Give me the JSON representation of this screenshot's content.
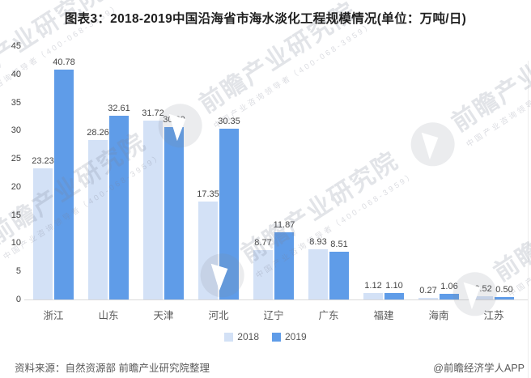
{
  "title": "图表3：2018-2019中国沿海省市海水淡化工程规模情况(单位：万吨/日)",
  "chart_data": {
    "type": "bar",
    "title": "图表3：2018-2019中国沿海省市海水淡化工程规模情况(单位：万吨/日)",
    "unit": "万吨/日",
    "categories": [
      "浙江",
      "山东",
      "天津",
      "河北",
      "辽宁",
      "广东",
      "福建",
      "海南",
      "江苏"
    ],
    "series": [
      {
        "name": "2018",
        "color": "#D3E1F6",
        "values": [
          23.23,
          28.26,
          31.72,
          17.35,
          8.77,
          8.93,
          1.12,
          0.27,
          0.52
        ]
      },
      {
        "name": "2019",
        "color": "#5F9CE8",
        "values": [
          40.78,
          32.61,
          30.6,
          30.35,
          11.87,
          8.51,
          1.1,
          1.06,
          0.5
        ]
      }
    ],
    "xlabel": "",
    "ylabel": "",
    "ylim": [
      0,
      45
    ],
    "ytick_step": 5,
    "grid": false,
    "legend_position": "bottom",
    "value_label_decimals": 2
  },
  "footer": {
    "source": "资料来源：自然资源部 前瞻产业研究院整理",
    "credit": "@前瞻经济学人APP"
  },
  "watermark": {
    "logo": "qianzhan-logo",
    "text": "前瞻产业研究院",
    "subtext": "中国产业咨询领导者（400-068-3959）"
  }
}
